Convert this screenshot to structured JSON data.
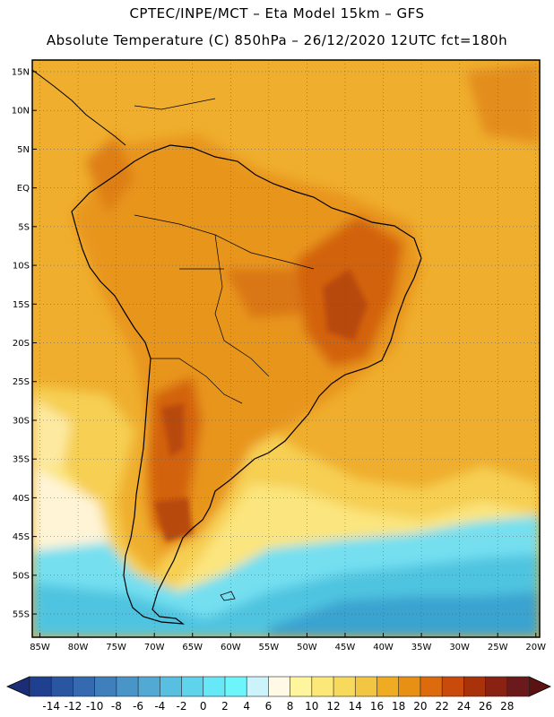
{
  "title": {
    "line1": "CPTEC/INPE/MCT –  Eta Model 15km – GFS",
    "line2": "Absolute Temperature (C) 850hPa – 26/12/2020 12UTC fct=180h"
  },
  "map": {
    "lat_labels": [
      "15N",
      "10N",
      "5N",
      "EQ",
      "5S",
      "10S",
      "15S",
      "20S",
      "25S",
      "30S",
      "35S",
      "40S",
      "45S",
      "50S",
      "55S"
    ],
    "lat_values": [
      15,
      10,
      5,
      0,
      -5,
      -10,
      -15,
      -20,
      -25,
      -30,
      -35,
      -40,
      -45,
      -50,
      -55
    ],
    "lon_labels": [
      "85W",
      "80W",
      "75W",
      "70W",
      "65W",
      "60W",
      "55W",
      "50W",
      "45W",
      "40W",
      "35W",
      "30W",
      "25W",
      "20W"
    ],
    "lon_values": [
      -85,
      -80,
      -75,
      -70,
      -65,
      -60,
      -55,
      -50,
      -45,
      -40,
      -35,
      -30,
      -25,
      -20
    ],
    "extent": {
      "lon_min": -86,
      "lon_max": -19.5,
      "lat_min": -58,
      "lat_max": 16.5
    }
  },
  "colorbar": {
    "labels": [
      "-14",
      "-12",
      "-10",
      "-8",
      "-6",
      "-4",
      "-2",
      "0",
      "2",
      "4",
      "6",
      "8",
      "10",
      "12",
      "14",
      "16",
      "18",
      "20",
      "22",
      "24",
      "26",
      "28"
    ],
    "colors": [
      "#1f3f8f",
      "#2a55a0",
      "#3569b0",
      "#3f7fbc",
      "#4a95c8",
      "#52aad4",
      "#59bfe0",
      "#5fd3ec",
      "#66e8f6",
      "#6cf5fb",
      "#ccf3fa",
      "#fff9e6",
      "#fff59e",
      "#fbe878",
      "#f7d95c",
      "#f2c642",
      "#efac22",
      "#e89014",
      "#dd6a0c",
      "#c94a0a",
      "#aa320a",
      "#8a2214",
      "#6a1a1a"
    ],
    "underflow_color": "#1a2d75",
    "overflow_color": "#5a1212"
  },
  "fields": {
    "ocean_south_cold": "#4fc4e0",
    "ocean_far_south_deep": "#3aa3d0",
    "ocean_mid": "#f5cd45",
    "ocean_warm": "#efb23c",
    "land_warm": "#e8951e",
    "land_hot": "#d3620f",
    "land_very_hot": "#b84a10"
  }
}
